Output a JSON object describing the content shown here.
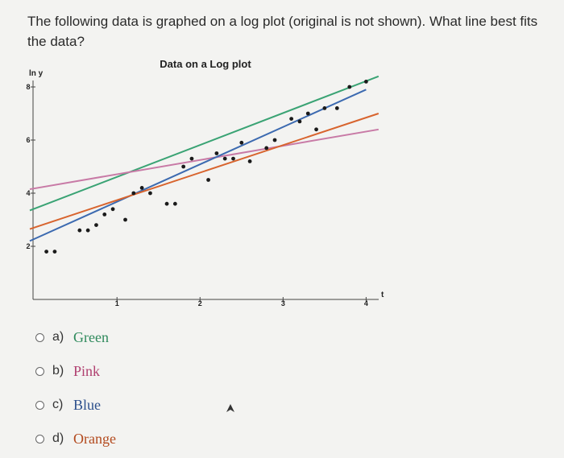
{
  "question": {
    "text": "The following data is graphed on a log plot (original is not shown). What line best fits the data?"
  },
  "options": [
    {
      "letter": "a)",
      "label": "Green",
      "color": "#3aa374"
    },
    {
      "letter": "b)",
      "label": "Pink",
      "color": "#c87aa6"
    },
    {
      "letter": "c)",
      "label": "Blue",
      "color": "#3c6ab0"
    },
    {
      "letter": "d)",
      "label": "Orange",
      "color": "#d8642e"
    }
  ],
  "chart_data": {
    "type": "scatter",
    "title": "Data on a Log plot",
    "xlabel": "t",
    "ylabel": "ln y",
    "xlim": [
      -0.05,
      4.2
    ],
    "ylim": [
      0,
      9
    ],
    "x_ticks": [
      1,
      2,
      3,
      4
    ],
    "y_ticks": [
      2,
      4,
      6,
      8
    ],
    "grid": false,
    "points": [
      {
        "x": 0.15,
        "y": 1.8
      },
      {
        "x": 0.25,
        "y": 1.8
      },
      {
        "x": 0.55,
        "y": 2.6
      },
      {
        "x": 0.65,
        "y": 2.6
      },
      {
        "x": 0.75,
        "y": 2.8
      },
      {
        "x": 0.85,
        "y": 3.2
      },
      {
        "x": 0.95,
        "y": 3.4
      },
      {
        "x": 1.1,
        "y": 3.0
      },
      {
        "x": 1.2,
        "y": 4.0
      },
      {
        "x": 1.3,
        "y": 4.2
      },
      {
        "x": 1.4,
        "y": 4.0
      },
      {
        "x": 1.6,
        "y": 3.6
      },
      {
        "x": 1.7,
        "y": 3.6
      },
      {
        "x": 1.8,
        "y": 5.0
      },
      {
        "x": 1.9,
        "y": 5.3
      },
      {
        "x": 2.1,
        "y": 4.5
      },
      {
        "x": 2.2,
        "y": 5.5
      },
      {
        "x": 2.3,
        "y": 5.3
      },
      {
        "x": 2.4,
        "y": 5.3
      },
      {
        "x": 2.5,
        "y": 5.9
      },
      {
        "x": 2.6,
        "y": 5.2
      },
      {
        "x": 2.8,
        "y": 5.7
      },
      {
        "x": 2.9,
        "y": 6.0
      },
      {
        "x": 3.1,
        "y": 6.8
      },
      {
        "x": 3.2,
        "y": 6.7
      },
      {
        "x": 3.3,
        "y": 7.0
      },
      {
        "x": 3.4,
        "y": 6.4
      },
      {
        "x": 3.5,
        "y": 7.2
      },
      {
        "x": 3.65,
        "y": 7.2
      },
      {
        "x": 3.8,
        "y": 8.0
      },
      {
        "x": 4.0,
        "y": 8.2
      }
    ],
    "lines": [
      {
        "name": "Green",
        "color": "#3aa374",
        "x": [
          -0.05,
          4.15
        ],
        "y": [
          3.35,
          8.4
        ]
      },
      {
        "name": "Pink",
        "color": "#c87aa6",
        "x": [
          -0.05,
          4.15
        ],
        "y": [
          4.15,
          6.4
        ]
      },
      {
        "name": "Blue",
        "color": "#3c6ab0",
        "x": [
          -0.05,
          4.0
        ],
        "y": [
          2.2,
          7.9
        ]
      },
      {
        "name": "Orange",
        "color": "#d8642e",
        "x": [
          -0.05,
          4.15
        ],
        "y": [
          2.65,
          7.0
        ]
      }
    ]
  }
}
